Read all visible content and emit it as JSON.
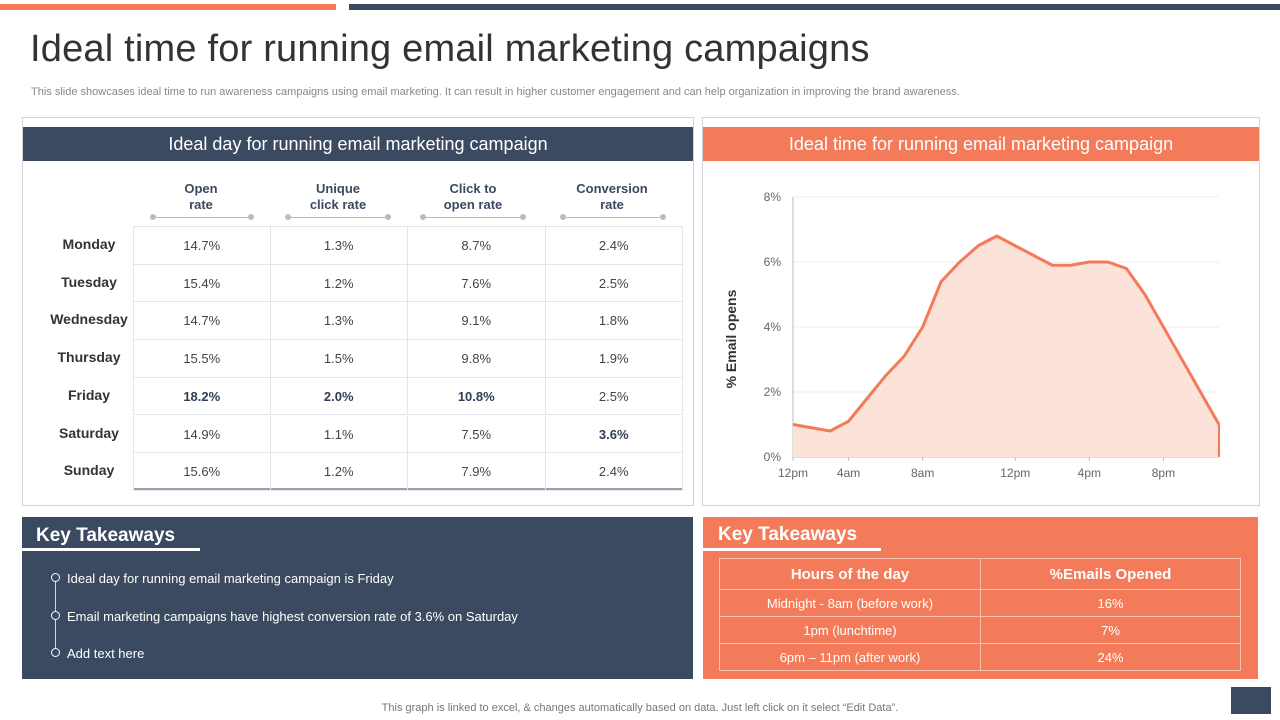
{
  "slide": {
    "title": "Ideal time for running email marketing campaigns",
    "subtitle": "This slide showcases ideal time to run awareness campaigns using email marketing. It can result in higher customer engagement and can help organization in improving the brand awareness.",
    "footnote": "This graph is linked to excel, & changes automatically based on data. Just left click on it select “Edit Data”."
  },
  "day_table": {
    "header": "Ideal day for running email marketing campaign",
    "columns": [
      "Open\nrate",
      "Unique\nclick rate",
      "Click to\nopen rate",
      "Conversion\nrate"
    ],
    "rows": [
      {
        "day": "Monday",
        "values": [
          "14.7%",
          "1.3%",
          "8.7%",
          "2.4%"
        ],
        "highlight": [
          false,
          false,
          false,
          false
        ]
      },
      {
        "day": "Tuesday",
        "values": [
          "15.4%",
          "1.2%",
          "7.6%",
          "2.5%"
        ],
        "highlight": [
          false,
          false,
          false,
          false
        ]
      },
      {
        "day": "Wednesday",
        "values": [
          "14.7%",
          "1.3%",
          "9.1%",
          "1.8%"
        ],
        "highlight": [
          false,
          false,
          false,
          false
        ]
      },
      {
        "day": "Thursday",
        "values": [
          "15.5%",
          "1.5%",
          "9.8%",
          "1.9%"
        ],
        "highlight": [
          false,
          false,
          false,
          false
        ]
      },
      {
        "day": "Friday",
        "values": [
          "18.2%",
          "2.0%",
          "10.8%",
          "2.5%"
        ],
        "highlight": [
          true,
          true,
          true,
          false
        ]
      },
      {
        "day": "Saturday",
        "values": [
          "14.9%",
          "1.1%",
          "7.5%",
          "3.6%"
        ],
        "highlight": [
          false,
          false,
          false,
          true
        ]
      },
      {
        "day": "Sunday",
        "values": [
          "15.6%",
          "1.2%",
          "7.9%",
          "2.4%"
        ],
        "highlight": [
          false,
          false,
          false,
          false
        ]
      }
    ]
  },
  "time_chart": {
    "header": "Ideal time for running email marketing campaign"
  },
  "chart_data": {
    "type": "area",
    "title": "Ideal time for running email marketing campaign",
    "xlabel": "",
    "ylabel": "% Email opens",
    "x_ticks": [
      "12pm",
      "4am",
      "8am",
      "12pm",
      "4pm",
      "8pm"
    ],
    "x_tick_hours": [
      0,
      3,
      7,
      12,
      16,
      20
    ],
    "x_range": [
      0,
      23
    ],
    "y_ticks": [
      "0%",
      "2%",
      "4%",
      "6%",
      "8%"
    ],
    "ylim": [
      0,
      8
    ],
    "grid": true,
    "color": "#F47B5A",
    "series": [
      {
        "name": "% Email opens",
        "x": [
          0,
          2,
          3,
          4,
          5,
          6,
          7,
          8,
          9,
          10,
          11,
          12,
          13,
          14,
          15,
          16,
          17,
          18,
          19,
          20,
          21,
          22,
          23
        ],
        "values": [
          1.0,
          0.8,
          1.1,
          1.8,
          2.5,
          3.1,
          4.0,
          5.4,
          6.0,
          6.5,
          6.8,
          6.5,
          6.2,
          5.9,
          5.9,
          6.0,
          6.0,
          5.8,
          5.0,
          4.0,
          3.0,
          2.0,
          1.0
        ]
      }
    ]
  },
  "takeaways_left": {
    "title": "Key Takeaways",
    "bullets": [
      "Ideal day for running email marketing campaign is Friday",
      "Email marketing campaigns have highest conversion  rate of 3.6% on Saturday",
      "Add text here"
    ]
  },
  "takeaways_right": {
    "title": "Key Takeaways",
    "columns": [
      "Hours of the day",
      "%Emails Opened"
    ],
    "rows": [
      [
        "Midnight  -  8am (before  work)",
        "16%"
      ],
      [
        "1pm (lunchtime)",
        "7%"
      ],
      [
        "6pm – 11pm (after work)",
        "24%"
      ]
    ]
  },
  "colors": {
    "navy": "#3B4A60",
    "orange": "#F47B5A",
    "area_fill": "#FCE3DA"
  }
}
